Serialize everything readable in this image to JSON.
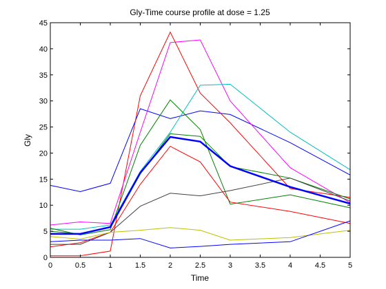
{
  "chart_data": {
    "type": "line",
    "title": "Gly-Time course profile at dose = 1.25",
    "xlabel": "Time",
    "ylabel": "Gly",
    "xlim": [
      0,
      5
    ],
    "ylim": [
      0,
      45
    ],
    "xticks": [
      "0",
      "0.5",
      "1",
      "1.5",
      "2",
      "2.5",
      "3",
      "3.5",
      "4",
      "4.5",
      "5"
    ],
    "yticks": [
      "0",
      "5",
      "10",
      "15",
      "20",
      "25",
      "30",
      "35",
      "40",
      "45"
    ],
    "grid": false,
    "x": [
      0,
      0.5,
      1,
      1.5,
      2,
      2.5,
      3,
      4,
      5
    ],
    "series": [
      {
        "values": [
          13.8,
          12.6,
          14.2,
          28.5,
          26.6,
          28.1,
          27.4,
          22.0,
          15.8
        ],
        "color": "#0000ff",
        "width": 1
      },
      {
        "values": [
          0.3,
          0.3,
          1.2,
          31.0,
          43.2,
          31.5,
          25.8,
          13.2,
          11.5
        ],
        "color": "#ff0000",
        "width": 1
      },
      {
        "values": [
          6.2,
          6.8,
          6.5,
          24.0,
          41.2,
          41.7,
          30.0,
          17.2,
          10.5
        ],
        "color": "#ff00ff",
        "width": 1
      },
      {
        "values": [
          5.4,
          5.4,
          6.2,
          16.5,
          24.0,
          33.0,
          33.2,
          24.0,
          16.8
        ],
        "color": "#00bfbf",
        "width": 1
      },
      {
        "values": [
          5.6,
          4.3,
          5.3,
          21.5,
          30.2,
          24.5,
          10.2,
          12.0,
          9.5
        ],
        "color": "#008000",
        "width": 1
      },
      {
        "values": [
          2.0,
          2.8,
          4.8,
          14.0,
          21.3,
          18.3,
          10.6,
          8.8,
          6.5
        ],
        "color": "#ff0000",
        "width": 1
      },
      {
        "values": [
          5.0,
          4.5,
          5.8,
          16.0,
          23.7,
          23.2,
          17.4,
          15.2,
          11.2
        ],
        "color": "#008000",
        "width": 1
      },
      {
        "values": [
          2.5,
          2.5,
          4.8,
          9.8,
          12.3,
          11.8,
          12.8,
          15.2,
          10.8
        ],
        "color": "#404040",
        "width": 1
      },
      {
        "values": [
          4.0,
          3.5,
          4.8,
          5.2,
          5.7,
          5.2,
          3.3,
          3.8,
          5.2
        ],
        "color": "#bfbf00",
        "width": 1
      },
      {
        "values": [
          3.0,
          3.3,
          3.3,
          3.6,
          1.8,
          2.1,
          2.5,
          3.0,
          7.0
        ],
        "color": "#0000ff",
        "width": 1
      },
      {
        "values": [
          4.5,
          4.5,
          5.8,
          16.2,
          23.1,
          22.2,
          17.5,
          13.5,
          10.3
        ],
        "color": "#0000ff",
        "width": 2.5
      }
    ]
  }
}
